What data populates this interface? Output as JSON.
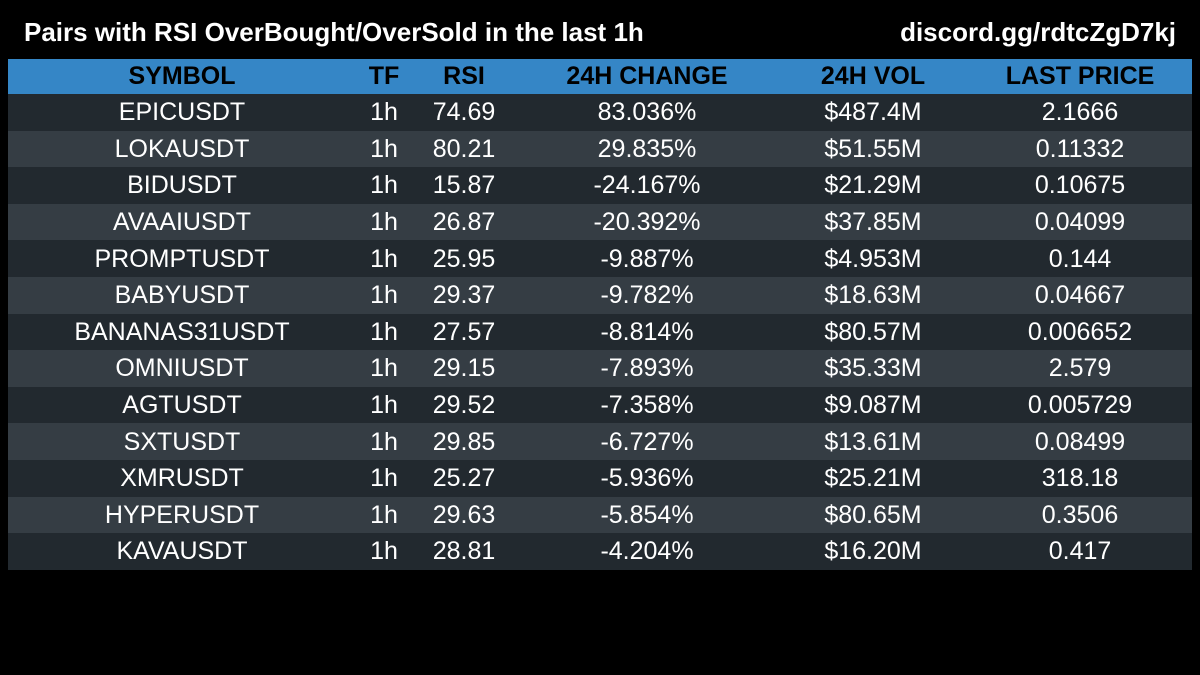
{
  "header": {
    "title": "Pairs with RSI OverBought/OverSold in the last 1h",
    "link": "discord.gg/rdtcZgD7kj"
  },
  "colors": {
    "background": "#000000",
    "header_row": "#3586c6",
    "row_dark": "#22292f",
    "row_light": "#353d44",
    "text": "#ffffff"
  },
  "table": {
    "columns": [
      "SYMBOL",
      "TF",
      "RSI",
      "24H CHANGE",
      "24H VOL",
      "LAST PRICE"
    ],
    "rows": [
      [
        "EPICUSDT",
        "1h",
        "74.69",
        "83.036%",
        "$487.4M",
        "2.1666"
      ],
      [
        "LOKAUSDT",
        "1h",
        "80.21",
        "29.835%",
        "$51.55M",
        "0.11332"
      ],
      [
        "BIDUSDT",
        "1h",
        "15.87",
        "-24.167%",
        "$21.29M",
        "0.10675"
      ],
      [
        "AVAAIUSDT",
        "1h",
        "26.87",
        "-20.392%",
        "$37.85M",
        "0.04099"
      ],
      [
        "PROMPTUSDT",
        "1h",
        "25.95",
        "-9.887%",
        "$4.953M",
        "0.144"
      ],
      [
        "BABYUSDT",
        "1h",
        "29.37",
        "-9.782%",
        "$18.63M",
        "0.04667"
      ],
      [
        "BANANAS31USDT",
        "1h",
        "27.57",
        "-8.814%",
        "$80.57M",
        "0.006652"
      ],
      [
        "OMNIUSDT",
        "1h",
        "29.15",
        "-7.893%",
        "$35.33M",
        "2.579"
      ],
      [
        "AGTUSDT",
        "1h",
        "29.52",
        "-7.358%",
        "$9.087M",
        "0.005729"
      ],
      [
        "SXTUSDT",
        "1h",
        "29.85",
        "-6.727%",
        "$13.61M",
        "0.08499"
      ],
      [
        "XMRUSDT",
        "1h",
        "25.27",
        "-5.936%",
        "$25.21M",
        "318.18"
      ],
      [
        "HYPERUSDT",
        "1h",
        "29.63",
        "-5.854%",
        "$80.65M",
        "0.3506"
      ],
      [
        "KAVAUSDT",
        "1h",
        "28.81",
        "-4.204%",
        "$16.20M",
        "0.417"
      ]
    ]
  }
}
